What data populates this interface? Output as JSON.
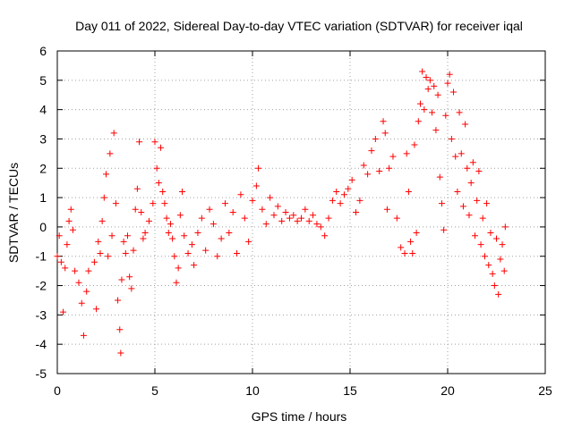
{
  "chart_data": {
    "type": "scatter",
    "title": "Day 011 of 2022, Sidereal Day-to-day VTEC variation (SDTVAR) for receiver iqal",
    "xlabel": "GPS time / hours",
    "ylabel": "SDTVAR / TECUs",
    "xlim": [
      0,
      25
    ],
    "ylim": [
      -5,
      6
    ],
    "xticks": [
      "0",
      "5",
      "10",
      "15",
      "20",
      "25"
    ],
    "yticks": [
      "-5",
      "-4",
      "-3",
      "-2",
      "-1",
      "0",
      "1",
      "2",
      "3",
      "4",
      "5",
      "6"
    ],
    "grid": true,
    "marker": "+",
    "series": [
      {
        "name": "SDTVAR",
        "color": "#ff0000",
        "points": [
          [
            0.0,
            -1.0
          ],
          [
            0.1,
            -0.3
          ],
          [
            0.2,
            -1.2
          ],
          [
            0.3,
            -2.9
          ],
          [
            0.4,
            -1.4
          ],
          [
            0.5,
            -0.6
          ],
          [
            0.6,
            0.2
          ],
          [
            0.7,
            0.6
          ],
          [
            0.8,
            -0.1
          ],
          [
            0.9,
            -1.5
          ],
          [
            1.1,
            -1.9
          ],
          [
            1.25,
            -2.6
          ],
          [
            1.35,
            -3.7
          ],
          [
            1.5,
            -2.2
          ],
          [
            1.6,
            -1.5
          ],
          [
            1.9,
            -1.2
          ],
          [
            2.0,
            -2.8
          ],
          [
            2.1,
            -0.5
          ],
          [
            2.2,
            -0.9
          ],
          [
            2.3,
            0.2
          ],
          [
            2.4,
            1.0
          ],
          [
            2.5,
            1.8
          ],
          [
            2.6,
            -1.0
          ],
          [
            2.7,
            2.5
          ],
          [
            2.8,
            -0.3
          ],
          [
            2.9,
            3.2
          ],
          [
            3.0,
            0.8
          ],
          [
            3.1,
            -2.5
          ],
          [
            3.2,
            -3.5
          ],
          [
            3.25,
            -4.3
          ],
          [
            3.3,
            -1.8
          ],
          [
            3.4,
            -0.5
          ],
          [
            3.5,
            -0.9
          ],
          [
            3.6,
            -0.3
          ],
          [
            3.7,
            -1.7
          ],
          [
            3.8,
            -2.1
          ],
          [
            3.9,
            -0.8
          ],
          [
            4.0,
            0.6
          ],
          [
            4.1,
            1.3
          ],
          [
            4.2,
            2.9
          ],
          [
            4.3,
            0.5
          ],
          [
            4.4,
            -0.4
          ],
          [
            4.5,
            -0.2
          ],
          [
            4.7,
            0.2
          ],
          [
            4.9,
            0.8
          ],
          [
            5.0,
            2.9
          ],
          [
            5.1,
            2.0
          ],
          [
            5.2,
            1.5
          ],
          [
            5.3,
            2.7
          ],
          [
            5.4,
            1.2
          ],
          [
            5.5,
            0.8
          ],
          [
            5.6,
            0.3
          ],
          [
            5.7,
            -0.2
          ],
          [
            5.8,
            0.1
          ],
          [
            5.9,
            -0.4
          ],
          [
            6.0,
            -1.0
          ],
          [
            6.1,
            -1.9
          ],
          [
            6.2,
            -1.4
          ],
          [
            6.3,
            0.4
          ],
          [
            6.4,
            1.2
          ],
          [
            6.5,
            -0.3
          ],
          [
            6.7,
            -0.9
          ],
          [
            6.9,
            -0.6
          ],
          [
            7.0,
            -1.3
          ],
          [
            7.2,
            -0.2
          ],
          [
            7.4,
            0.3
          ],
          [
            7.6,
            -0.8
          ],
          [
            7.8,
            0.6
          ],
          [
            8.0,
            0.1
          ],
          [
            8.2,
            -1.0
          ],
          [
            8.4,
            -0.4
          ],
          [
            8.6,
            0.8
          ],
          [
            8.8,
            -0.2
          ],
          [
            9.0,
            0.5
          ],
          [
            9.2,
            -0.9
          ],
          [
            9.4,
            1.1
          ],
          [
            9.6,
            0.3
          ],
          [
            9.8,
            -0.5
          ],
          [
            10.0,
            0.9
          ],
          [
            10.2,
            1.4
          ],
          [
            10.3,
            2.0
          ],
          [
            10.5,
            0.6
          ],
          [
            10.7,
            0.1
          ],
          [
            10.9,
            1.0
          ],
          [
            11.1,
            0.4
          ],
          [
            11.3,
            0.7
          ],
          [
            11.5,
            0.2
          ],
          [
            11.7,
            0.5
          ],
          [
            11.9,
            0.3
          ],
          [
            12.1,
            0.4
          ],
          [
            12.3,
            0.2
          ],
          [
            12.5,
            0.3
          ],
          [
            12.7,
            0.6
          ],
          [
            12.9,
            0.2
          ],
          [
            13.1,
            0.4
          ],
          [
            13.3,
            0.1
          ],
          [
            13.5,
            0.0
          ],
          [
            13.7,
            -0.3
          ],
          [
            13.9,
            0.3
          ],
          [
            14.1,
            0.9
          ],
          [
            14.3,
            1.2
          ],
          [
            14.5,
            0.8
          ],
          [
            14.7,
            1.1
          ],
          [
            14.9,
            1.3
          ],
          [
            15.1,
            1.6
          ],
          [
            15.3,
            0.5
          ],
          [
            15.5,
            0.9
          ],
          [
            15.7,
            2.1
          ],
          [
            15.9,
            1.8
          ],
          [
            16.1,
            2.6
          ],
          [
            16.3,
            3.0
          ],
          [
            16.5,
            1.9
          ],
          [
            16.7,
            3.6
          ],
          [
            16.8,
            3.2
          ],
          [
            16.9,
            0.6
          ],
          [
            17.0,
            2.0
          ],
          [
            17.2,
            2.4
          ],
          [
            17.4,
            0.3
          ],
          [
            17.6,
            -0.7
          ],
          [
            17.8,
            -0.9
          ],
          [
            17.9,
            2.5
          ],
          [
            18.0,
            1.2
          ],
          [
            18.1,
            -0.5
          ],
          [
            18.2,
            -0.9
          ],
          [
            18.3,
            2.8
          ],
          [
            18.4,
            -0.2
          ],
          [
            18.5,
            3.6
          ],
          [
            18.6,
            4.2
          ],
          [
            18.7,
            5.3
          ],
          [
            18.8,
            4.0
          ],
          [
            18.9,
            5.1
          ],
          [
            19.0,
            4.7
          ],
          [
            19.1,
            5.0
          ],
          [
            19.2,
            3.9
          ],
          [
            19.3,
            4.8
          ],
          [
            19.4,
            3.3
          ],
          [
            19.5,
            4.5
          ],
          [
            19.6,
            1.7
          ],
          [
            19.7,
            0.8
          ],
          [
            19.8,
            -0.1
          ],
          [
            19.9,
            3.8
          ],
          [
            20.0,
            4.9
          ],
          [
            20.1,
            5.2
          ],
          [
            20.2,
            3.0
          ],
          [
            20.3,
            4.6
          ],
          [
            20.4,
            2.4
          ],
          [
            20.5,
            1.2
          ],
          [
            20.6,
            3.9
          ],
          [
            20.7,
            2.5
          ],
          [
            20.8,
            0.7
          ],
          [
            20.9,
            3.5
          ],
          [
            21.0,
            2.0
          ],
          [
            21.1,
            0.4
          ],
          [
            21.2,
            1.5
          ],
          [
            21.3,
            2.2
          ],
          [
            21.4,
            -0.3
          ],
          [
            21.5,
            0.9
          ],
          [
            21.6,
            1.9
          ],
          [
            21.7,
            -0.6
          ],
          [
            21.8,
            0.3
          ],
          [
            21.9,
            -1.0
          ],
          [
            22.0,
            0.8
          ],
          [
            22.1,
            -1.3
          ],
          [
            22.2,
            -0.2
          ],
          [
            22.3,
            -1.6
          ],
          [
            22.4,
            -2.0
          ],
          [
            22.5,
            -0.4
          ],
          [
            22.6,
            -2.3
          ],
          [
            22.7,
            -1.1
          ],
          [
            22.8,
            -0.6
          ],
          [
            22.9,
            -1.5
          ],
          [
            22.95,
            0.0
          ]
        ]
      }
    ]
  }
}
